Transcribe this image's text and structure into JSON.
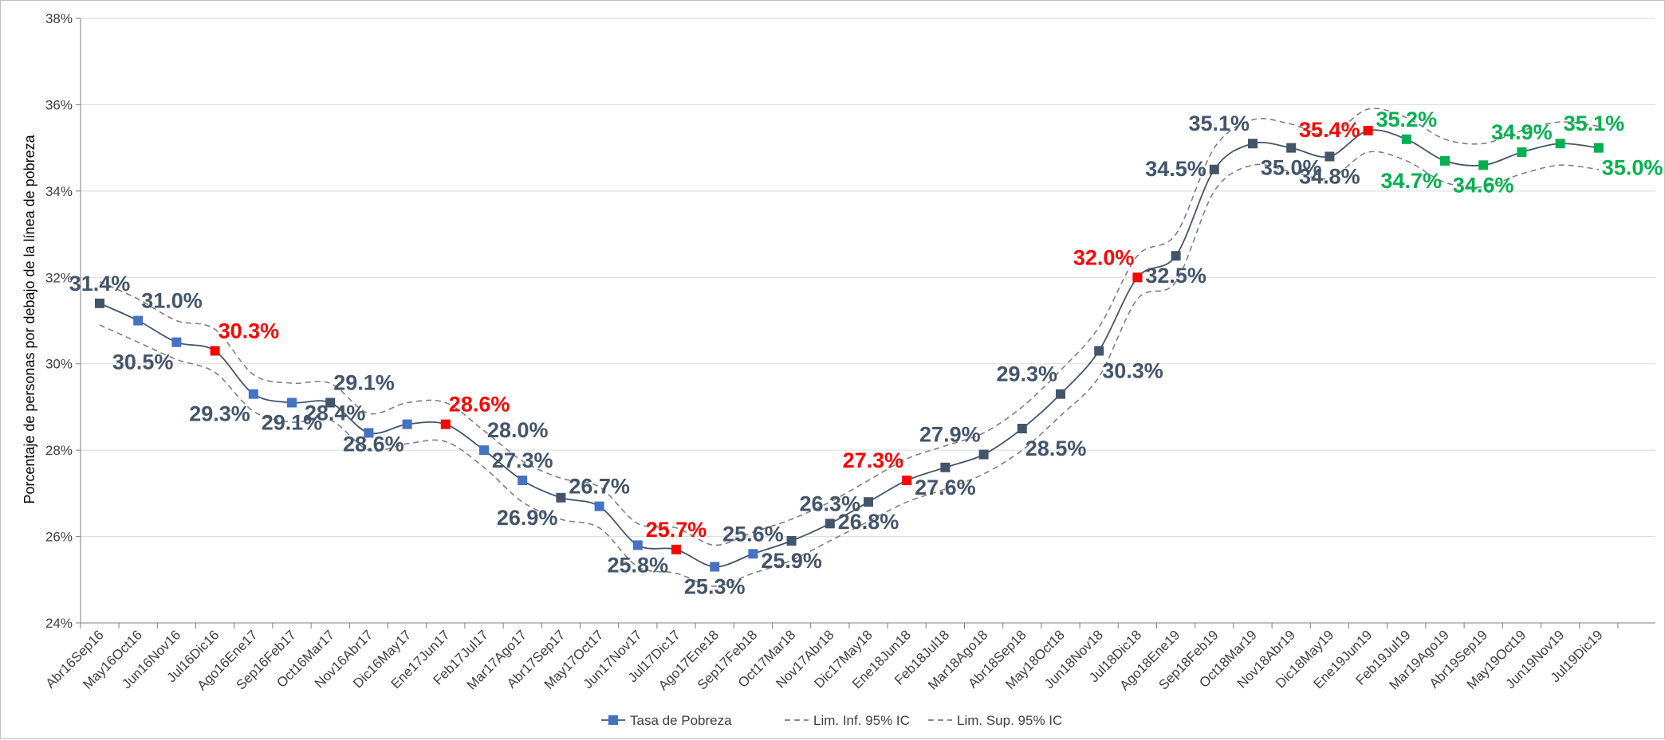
{
  "chart_data": {
    "type": "line",
    "title": "",
    "xlabel": "",
    "ylabel": "Porcentaje de personas por debajo de la línea de pobreza",
    "ylim": [
      24,
      38
    ],
    "y_ticks": [
      24,
      26,
      28,
      30,
      32,
      34,
      36,
      38
    ],
    "y_tick_labels": [
      "24%",
      "26%",
      "28%",
      "30%",
      "32%",
      "34%",
      "36%",
      "38%"
    ],
    "gridlines": true,
    "legend_position": "bottom",
    "categories": [
      "Abr16Sep16",
      "May16Oct16",
      "Jun16Nov16",
      "Jul16Dic16",
      "Ago16Ene17",
      "Sep16Feb17",
      "Oct16Mar17",
      "Nov16Abr17",
      "Dic16May17",
      "Ene17Jun17",
      "Feb17Jul17",
      "Mar17Ago17",
      "Abr17Sep17",
      "May17Oct17",
      "Jun17Nov17",
      "Jul17Dic17",
      "Ago17Ene18",
      "Sep17Feb18",
      "Oct17Mar18",
      "Nov17Abr18",
      "Dic17May18",
      "Ene18Jun18",
      "Feb18Jul18",
      "Mar18Ago18",
      "Abr18Sep18",
      "May18Oct18",
      "Jun18Nov18",
      "Jul18Dic18",
      "Ago18Ene19",
      "Sep18Feb19",
      "Oct18Mar19",
      "Nov18Abr19",
      "Dic18May19",
      "Ene19Jun19",
      "Feb19Jul19",
      "Mar19Ago19",
      "Abr19Sep19",
      "May19Oct19",
      "Jun19Nov19",
      "Jul19Dic19"
    ],
    "series": [
      {
        "name": "Tasa de Pobreza",
        "color": "#44546a",
        "values": [
          31.4,
          31.0,
          30.5,
          30.3,
          29.3,
          29.1,
          29.1,
          28.4,
          28.6,
          28.6,
          28.0,
          27.3,
          26.9,
          26.7,
          25.8,
          25.7,
          25.3,
          25.6,
          25.9,
          26.3,
          26.8,
          27.3,
          27.6,
          27.9,
          28.5,
          29.3,
          30.3,
          32.0,
          32.5,
          34.5,
          35.1,
          35.0,
          34.8,
          35.4,
          35.2,
          34.7,
          34.6,
          34.9,
          35.1,
          35.0
        ],
        "marker_colors": [
          "#44546a",
          "#4472c4",
          "#4472c4",
          "#ff0000",
          "#4472c4",
          "#4472c4",
          "#44546a",
          "#4472c4",
          "#4472c4",
          "#ff0000",
          "#4472c4",
          "#4472c4",
          "#44546a",
          "#4472c4",
          "#4472c4",
          "#ff0000",
          "#4472c4",
          "#4472c4",
          "#44546a",
          "#44546a",
          "#44546a",
          "#ff0000",
          "#44546a",
          "#44546a",
          "#44546a",
          "#44546a",
          "#44546a",
          "#ff0000",
          "#44546a",
          "#44546a",
          "#44546a",
          "#44546a",
          "#44546a",
          "#ff0000",
          "#00b050",
          "#00b050",
          "#00b050",
          "#00b050",
          "#00b050",
          "#00b050"
        ]
      },
      {
        "name": "Lim. Inf. 95% IC",
        "color": "#7f7f7f",
        "dash": true,
        "values": [
          30.9,
          30.5,
          30.1,
          29.8,
          28.9,
          28.65,
          28.7,
          28.0,
          28.15,
          28.2,
          27.6,
          26.8,
          26.4,
          26.2,
          25.3,
          25.15,
          24.85,
          25.15,
          25.45,
          25.9,
          26.35,
          26.8,
          27.1,
          27.45,
          28.0,
          28.8,
          29.7,
          31.5,
          31.9,
          34.0,
          34.6,
          34.45,
          34.3,
          34.9,
          34.7,
          34.2,
          34.1,
          34.4,
          34.6,
          34.5
        ]
      },
      {
        "name": "Lim. Sup. 95% IC",
        "color": "#7f7f7f",
        "dash": true,
        "values": [
          31.9,
          31.5,
          31.0,
          30.8,
          29.75,
          29.55,
          29.55,
          28.85,
          29.1,
          29.1,
          28.45,
          27.75,
          27.35,
          27.15,
          26.3,
          26.2,
          25.8,
          26.1,
          26.4,
          26.8,
          27.3,
          27.8,
          28.1,
          28.4,
          29.0,
          29.85,
          30.85,
          32.5,
          33.0,
          35.0,
          35.65,
          35.55,
          35.3,
          35.9,
          35.7,
          35.2,
          35.1,
          35.4,
          35.6,
          35.5
        ]
      }
    ],
    "lower_ci_display": [
      30.9,
      30.5,
      30.1,
      29.8,
      28.9,
      28.65,
      28.7,
      28.0,
      28.15,
      28.2,
      27.6,
      26.8,
      26.4,
      26.2,
      25.3,
      25.15,
      24.85,
      25.15,
      25.45,
      25.9,
      26.35,
      26.8,
      27.1,
      27.45,
      28.0,
      28.8,
      29.7,
      31.5,
      31.9,
      34.0,
      34.6,
      34.45,
      34.3,
      34.9,
      34.7,
      34.2,
      34.1,
      34.4,
      34.6,
      34.5
    ],
    "data_labels": [
      {
        "i": 0,
        "text": "31.4%",
        "pos": "above",
        "color": "#44546a"
      },
      {
        "i": 1,
        "text": "31.0%",
        "pos": "above-right",
        "color": "#44546a"
      },
      {
        "i": 2,
        "text": "30.5%",
        "pos": "below-left",
        "color": "#44546a"
      },
      {
        "i": 3,
        "text": "30.3%",
        "pos": "above-right",
        "color": "#ff0000"
      },
      {
        "i": 4,
        "text": "29.3%",
        "pos": "below-left",
        "color": "#44546a"
      },
      {
        "i": 5,
        "text": "29.1%",
        "pos": "below",
        "color": "#44546a"
      },
      {
        "i": 6,
        "text": "29.1%",
        "pos": "above-right",
        "color": "#44546a"
      },
      {
        "i": 7,
        "text": "28.4%",
        "pos": "above-left",
        "color": "#44546a"
      },
      {
        "i": 8,
        "text": "28.6%",
        "pos": "below-left",
        "color": "#44546a"
      },
      {
        "i": 9,
        "text": "28.6%",
        "pos": "above-right",
        "color": "#ff0000"
      },
      {
        "i": 10,
        "text": "28.0%",
        "pos": "above-right",
        "color": "#44546a"
      },
      {
        "i": 11,
        "text": "27.3%",
        "pos": "above",
        "color": "#44546a"
      },
      {
        "i": 12,
        "text": "26.9%",
        "pos": "below-left",
        "color": "#44546a"
      },
      {
        "i": 13,
        "text": "26.7%",
        "pos": "above",
        "color": "#44546a"
      },
      {
        "i": 14,
        "text": "25.8%",
        "pos": "below",
        "color": "#44546a"
      },
      {
        "i": 15,
        "text": "25.7%",
        "pos": "above",
        "color": "#ff0000"
      },
      {
        "i": 16,
        "text": "25.3%",
        "pos": "below",
        "color": "#44546a"
      },
      {
        "i": 17,
        "text": "25.6%",
        "pos": "above",
        "color": "#44546a"
      },
      {
        "i": 18,
        "text": "25.9%",
        "pos": "below",
        "color": "#44546a"
      },
      {
        "i": 19,
        "text": "26.3%",
        "pos": "above",
        "color": "#44546a"
      },
      {
        "i": 20,
        "text": "26.8%",
        "pos": "below",
        "color": "#44546a"
      },
      {
        "i": 21,
        "text": "27.3%",
        "pos": "above-left",
        "color": "#ff0000"
      },
      {
        "i": 22,
        "text": "27.6%",
        "pos": "below",
        "color": "#44546a"
      },
      {
        "i": 23,
        "text": "27.9%",
        "pos": "above-left",
        "color": "#44546a"
      },
      {
        "i": 24,
        "text": "28.5%",
        "pos": "below-right",
        "color": "#44546a"
      },
      {
        "i": 25,
        "text": "29.3%",
        "pos": "above-left",
        "color": "#44546a"
      },
      {
        "i": 26,
        "text": "30.3%",
        "pos": "below-right",
        "color": "#44546a"
      },
      {
        "i": 27,
        "text": "32.0%",
        "pos": "above-left",
        "color": "#ff0000"
      },
      {
        "i": 28,
        "text": "32.5%",
        "pos": "below",
        "color": "#44546a"
      },
      {
        "i": 29,
        "text": "34.5%",
        "pos": "left",
        "color": "#44546a"
      },
      {
        "i": 30,
        "text": "35.1%",
        "pos": "above-left",
        "color": "#44546a"
      },
      {
        "i": 31,
        "text": "35.0%",
        "pos": "below",
        "color": "#44546a"
      },
      {
        "i": 32,
        "text": "34.8%",
        "pos": "below",
        "color": "#44546a"
      },
      {
        "i": 33,
        "text": "35.4%",
        "pos": "left",
        "color": "#ff0000"
      },
      {
        "i": 34,
        "text": "35.2%",
        "pos": "above",
        "color": "#00b050"
      },
      {
        "i": 35,
        "text": "34.7%",
        "pos": "below-left",
        "color": "#00b050"
      },
      {
        "i": 36,
        "text": "34.6%",
        "pos": "below",
        "color": "#00b050"
      },
      {
        "i": 37,
        "text": "34.9%",
        "pos": "above",
        "color": "#00b050"
      },
      {
        "i": 38,
        "text": "35.1%",
        "pos": "above-right",
        "color": "#00b050"
      },
      {
        "i": 39,
        "text": "35.0%",
        "pos": "below-right",
        "color": "#00b050"
      }
    ]
  }
}
